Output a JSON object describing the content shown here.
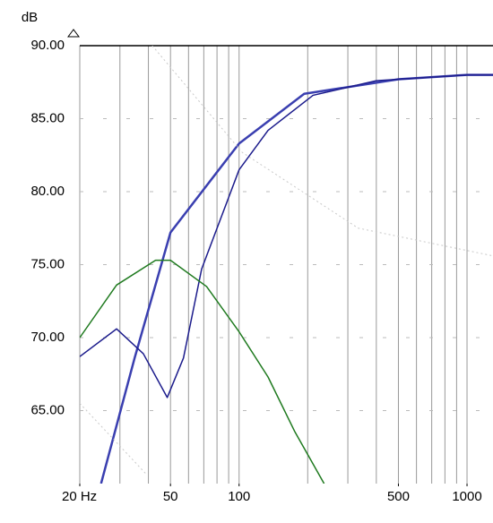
{
  "chart_data": {
    "type": "line",
    "ylabel": "dB",
    "xlim": [
      20,
      1300
    ],
    "ylim": [
      60,
      90
    ],
    "xscale": "log",
    "xticks": [
      {
        "value": 20,
        "label": "20 Hz"
      },
      50,
      100,
      500,
      1000
    ],
    "yticks": [
      {
        "value": 65,
        "label": "65.00"
      },
      {
        "value": 70,
        "label": "70.00"
      },
      {
        "value": 75,
        "label": "75.00"
      },
      {
        "value": 80,
        "label": "80.00"
      },
      {
        "value": 85,
        "label": "85.00"
      },
      {
        "value": 90,
        "label": "90.00"
      }
    ],
    "xgrid": [
      20,
      30,
      40,
      50,
      60,
      70,
      80,
      90,
      100,
      200,
      300,
      400,
      500,
      600,
      700,
      800,
      900,
      1000
    ],
    "grid": true,
    "series": [
      {
        "color": "#3a3fb0",
        "width": 2.5,
        "dash": "none",
        "x": [
          24.8,
          34.8,
          50,
          100,
          193,
          500,
          1000,
          1300
        ],
        "values": [
          60,
          68.6,
          77.2,
          83.3,
          86.7,
          87.7,
          88.0,
          88.0
        ]
      },
      {
        "color": "#1c1c8c",
        "width": 1.5,
        "dash": "none",
        "x": [
          20,
          29,
          38,
          48.4,
          57,
          68.5,
          100,
          134,
          211,
          400,
          1000,
          1300
        ],
        "values": [
          68.7,
          70.6,
          68.9,
          65.9,
          68.6,
          74.7,
          81.5,
          84.2,
          86.6,
          87.6,
          88.0,
          88.0
        ]
      },
      {
        "color": "#1f7a1f",
        "width": 1.5,
        "dash": "none",
        "x": [
          20,
          29,
          43,
          50,
          72,
          100,
          134,
          175,
          236
        ],
        "values": [
          70.0,
          73.6,
          75.3,
          75.3,
          73.5,
          70.4,
          67.3,
          63.6,
          60
        ]
      },
      {
        "color": "#c8c8c8",
        "width": 1,
        "dash": "2,3",
        "x": [
          41.6,
          103,
          333,
          1300
        ],
        "values": [
          90,
          82.7,
          77.5,
          75.6
        ]
      },
      {
        "color": "#c8c8c8",
        "width": 1,
        "dash": "2,3",
        "x": [
          20,
          39.4
        ],
        "values": [
          65.5,
          60.6
        ]
      }
    ]
  }
}
